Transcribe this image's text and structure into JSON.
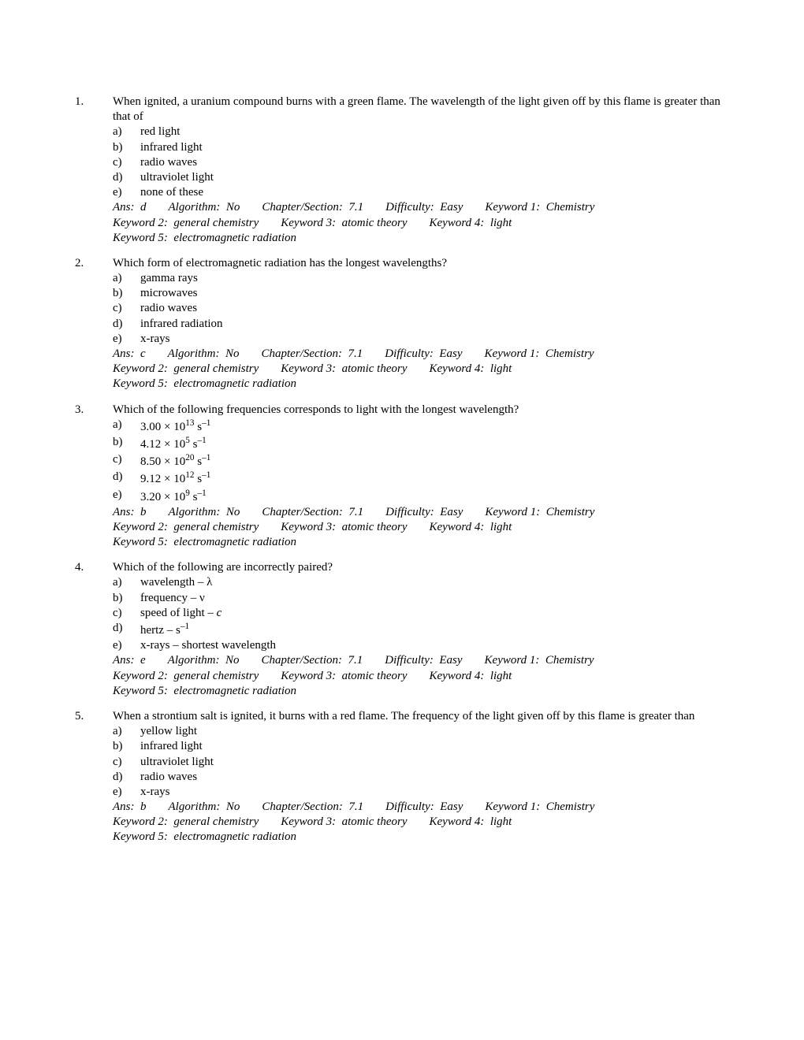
{
  "questions": [
    {
      "number": "1.",
      "text": "When ignited, a uranium compound burns with a green flame. The wavelength of the light given off by this flame is greater than that of",
      "options": [
        {
          "label": "a)",
          "text": "red light"
        },
        {
          "label": "b)",
          "text": "infrared light"
        },
        {
          "label": "c)",
          "text": "radio waves"
        },
        {
          "label": "d)",
          "text": "ultraviolet light"
        },
        {
          "label": "e)",
          "text": "none of these"
        }
      ],
      "ans": "d",
      "algorithm": "No",
      "chapter": "7.1",
      "difficulty": "Easy",
      "kw1": "Chemistry",
      "kw2": "general chemistry",
      "kw3": "atomic theory",
      "kw4": "light",
      "kw5": "electromagnetic radiation"
    },
    {
      "number": "2.",
      "text": "Which form of electromagnetic radiation has the longest wavelengths?",
      "options": [
        {
          "label": "a)",
          "text": "gamma rays"
        },
        {
          "label": "b)",
          "text": "microwaves"
        },
        {
          "label": "c)",
          "text": "radio waves"
        },
        {
          "label": "d)",
          "text": "infrared radiation"
        },
        {
          "label": "e)",
          "text": "x-rays"
        }
      ],
      "ans": "c",
      "algorithm": "No",
      "chapter": "7.1",
      "difficulty": "Easy",
      "kw1": "Chemistry",
      "kw2": "general chemistry",
      "kw3": "atomic theory",
      "kw4": "light",
      "kw5": "electromagnetic radiation"
    },
    {
      "number": "3.",
      "text": "Which of the following frequencies corresponds to light with the longest wavelength?",
      "options": [
        {
          "label": "a)",
          "html": "3.00 × 10<sup>13</sup> s<sup>–1</sup>"
        },
        {
          "label": "b)",
          "html": "4.12 × 10<sup>5</sup> s<sup>–1</sup>"
        },
        {
          "label": "c)",
          "html": "8.50 × 10<sup>20</sup> s<sup>–1</sup>"
        },
        {
          "label": "d)",
          "html": "9.12 × 10<sup>12</sup> s<sup>–1</sup>"
        },
        {
          "label": "e)",
          "html": "3.20 × 10<sup>9</sup> s<sup>–1</sup>"
        }
      ],
      "ans": "b",
      "algorithm": "No",
      "chapter": "7.1",
      "difficulty": "Easy",
      "kw1": "Chemistry",
      "kw2": "general chemistry",
      "kw3": "atomic theory",
      "kw4": "light",
      "kw5": "electromagnetic radiation"
    },
    {
      "number": "4.",
      "text": "Which of the following are incorrectly paired?",
      "options": [
        {
          "label": "a)",
          "html": "wavelength – λ"
        },
        {
          "label": "b)",
          "html": "frequency – ν"
        },
        {
          "label": "c)",
          "html": "speed of light – <i>c</i>"
        },
        {
          "label": "d)",
          "html": "hertz – s<sup>–1</sup>"
        },
        {
          "label": "e)",
          "html": "x-rays – shortest wavelength"
        }
      ],
      "ans": "e",
      "algorithm": "No",
      "chapter": "7.1",
      "difficulty": "Easy",
      "kw1": "Chemistry",
      "kw2": "general chemistry",
      "kw3": "atomic theory",
      "kw4": "light",
      "kw5": "electromagnetic radiation"
    },
    {
      "number": "5.",
      "text": "When a strontium salt is ignited, it burns with a red flame. The frequency of the light given off by this flame is greater than",
      "options": [
        {
          "label": "a)",
          "text": "yellow light"
        },
        {
          "label": "b)",
          "text": "infrared light"
        },
        {
          "label": "c)",
          "text": "ultraviolet light"
        },
        {
          "label": "d)",
          "text": "radio waves"
        },
        {
          "label": "e)",
          "text": "x-rays"
        }
      ],
      "ans": "b",
      "algorithm": "No",
      "chapter": "7.1",
      "difficulty": "Easy",
      "kw1": "Chemistry",
      "kw2": "general chemistry",
      "kw3": "atomic theory",
      "kw4": "light",
      "kw5": "electromagnetic radiation"
    }
  ],
  "labels": {
    "ans": "Ans:",
    "algorithm": "Algorithm:",
    "chapter": "Chapter/Section:",
    "difficulty": "Difficulty:",
    "kw1": "Keyword 1:",
    "kw2": "Keyword 2:",
    "kw3": "Keyword 3:",
    "kw4": "Keyword 4:",
    "kw5": "Keyword 5:"
  }
}
